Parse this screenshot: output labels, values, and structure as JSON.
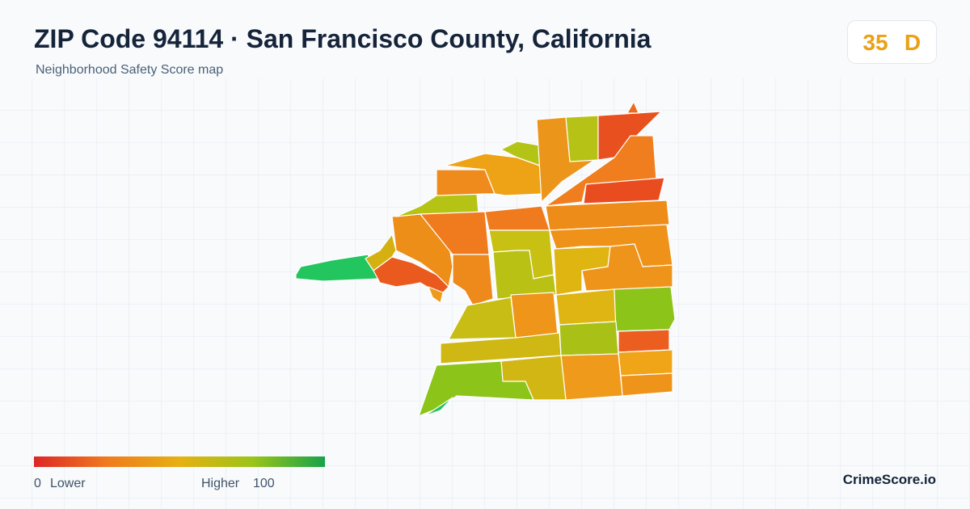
{
  "header": {
    "title": "ZIP Code 94114 · San Francisco County, California",
    "subtitle": "Neighborhood Safety Score map"
  },
  "badge": {
    "score": "35",
    "grade": "D"
  },
  "legend": {
    "min": "0",
    "min_label": "Lower",
    "max_label": "Higher",
    "max": "100"
  },
  "brand": "CrimeScore.io"
}
